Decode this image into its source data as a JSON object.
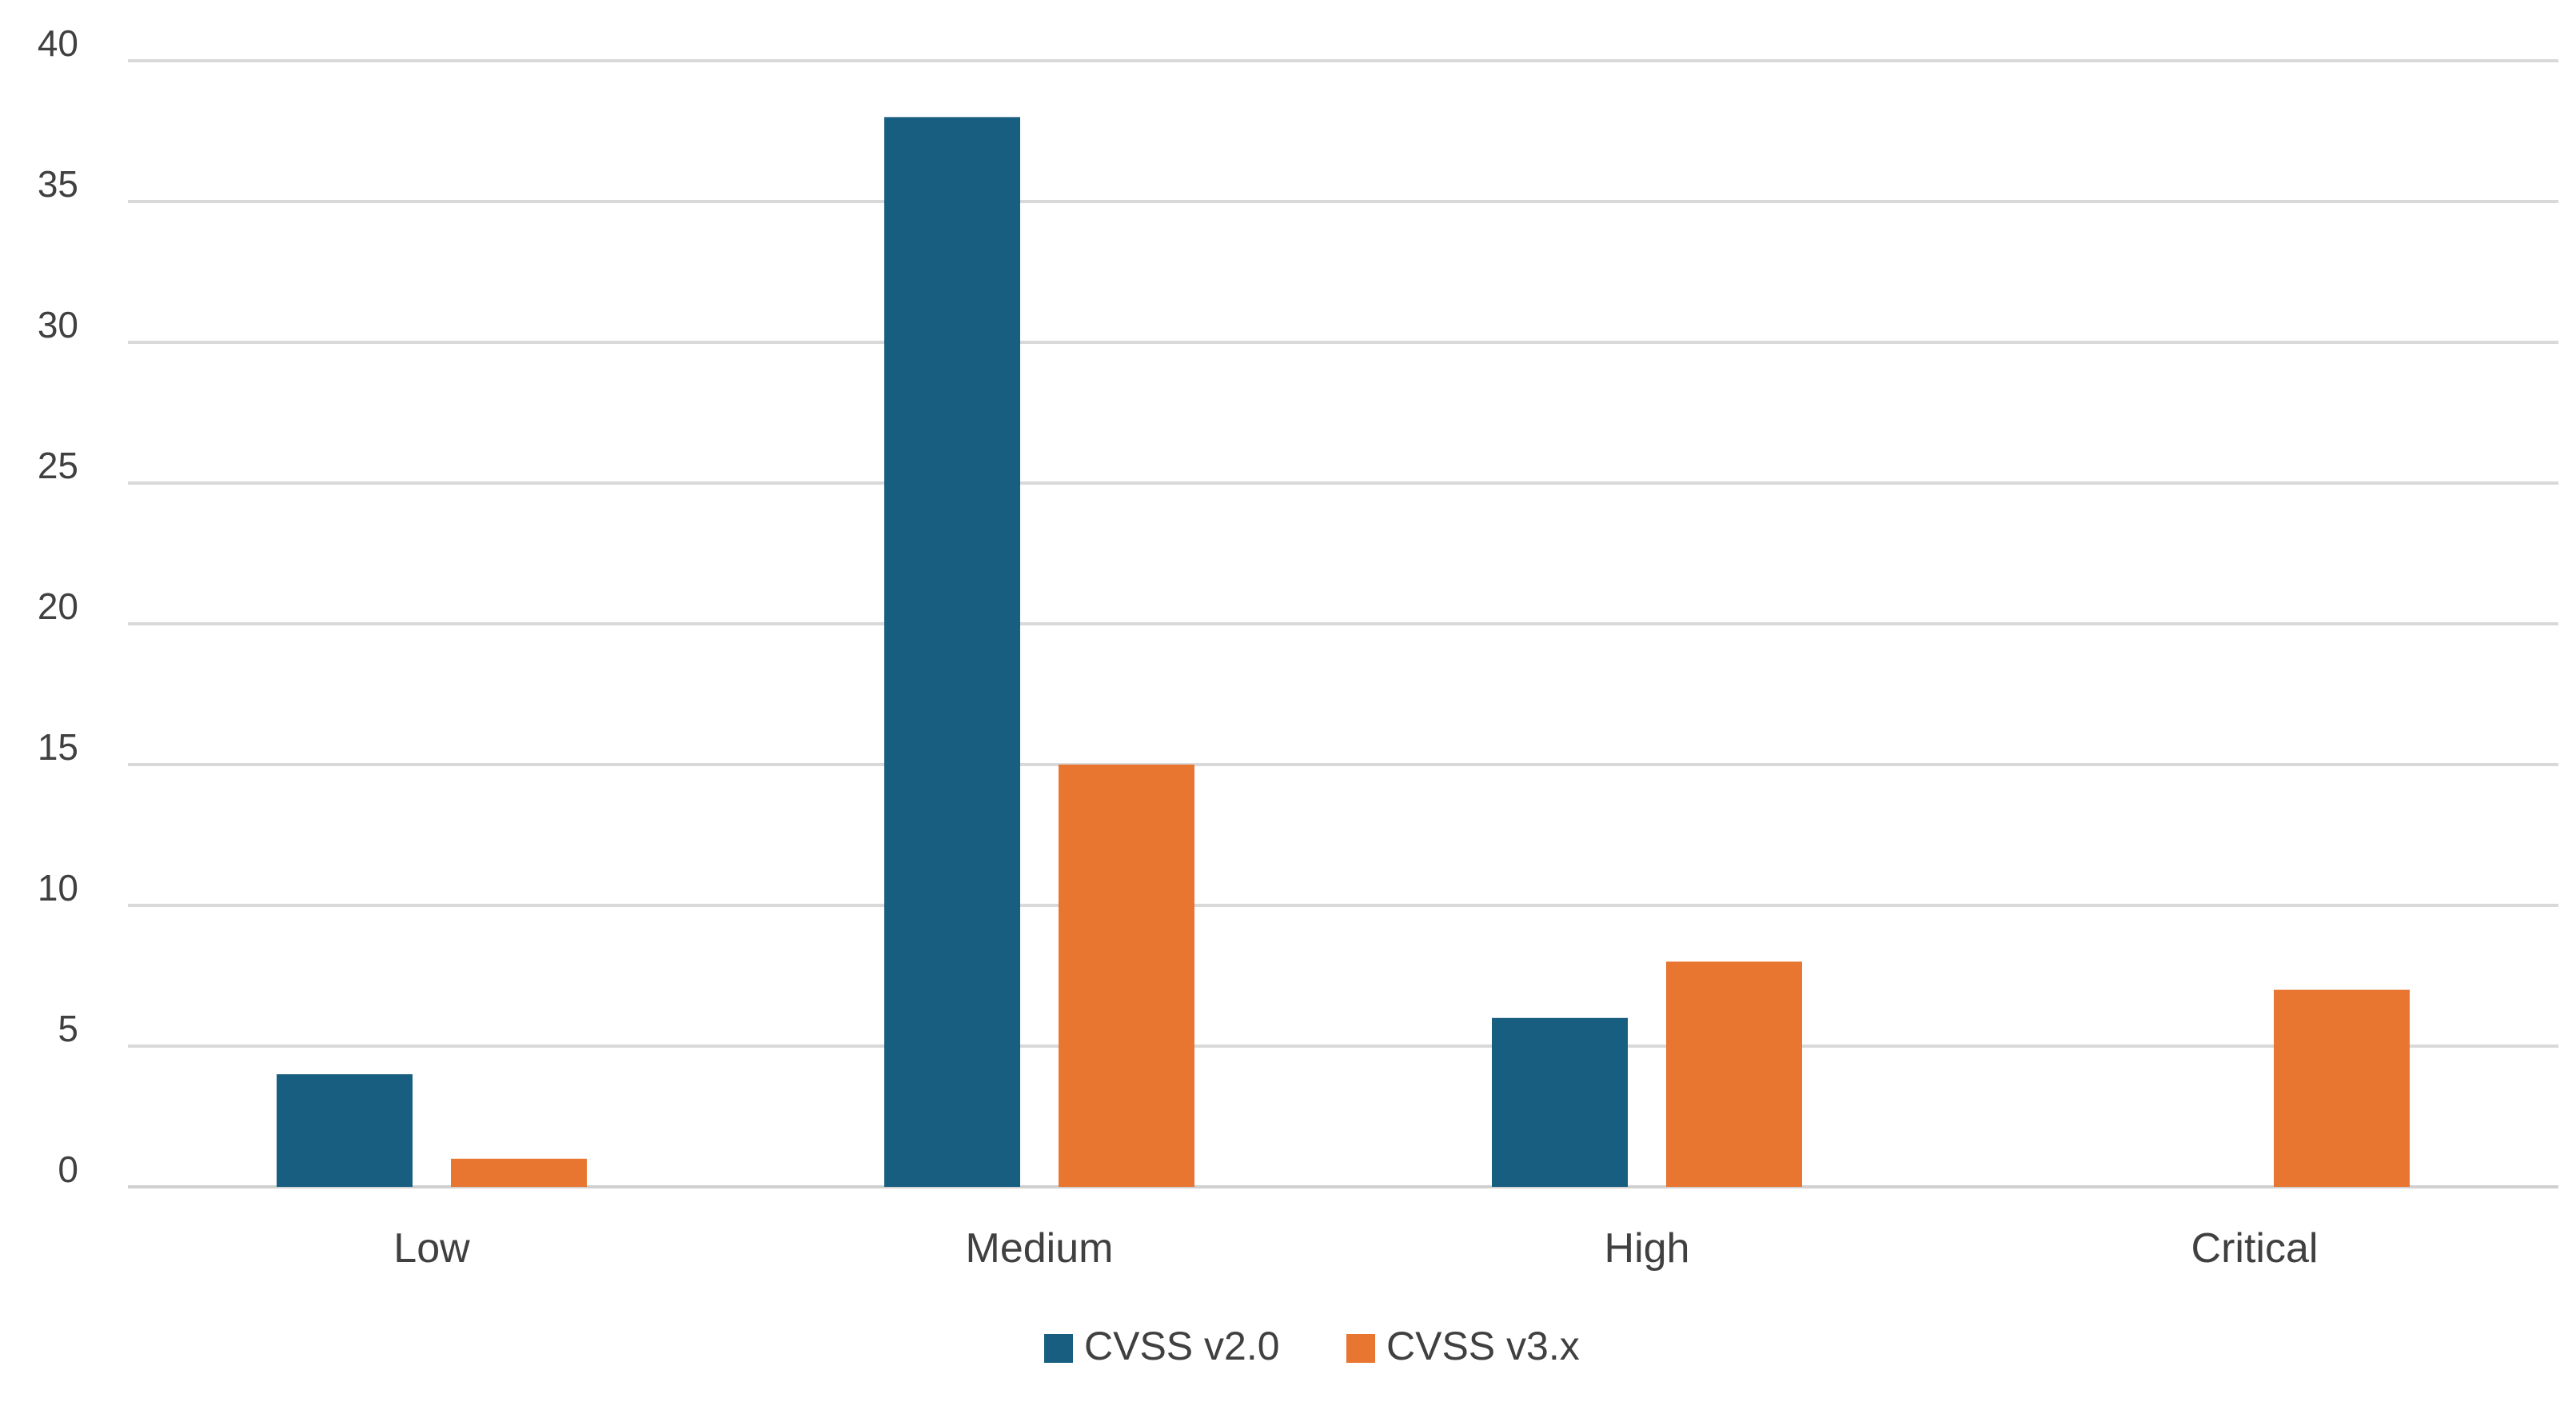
{
  "chart_data": {
    "type": "bar",
    "categories": [
      "Low",
      "Medium",
      "High",
      "Critical"
    ],
    "series": [
      {
        "name": "CVSS v2.0",
        "values": [
          4,
          38,
          6,
          0
        ],
        "color": "#175e80"
      },
      {
        "name": "CVSS v3.x",
        "values": [
          1,
          15,
          8,
          7
        ],
        "color": "#e87530"
      }
    ],
    "title": "",
    "xlabel": "",
    "ylabel": "",
    "ylim": [
      0,
      40
    ],
    "yticks": [
      0,
      5,
      10,
      15,
      20,
      25,
      30,
      35,
      40
    ],
    "grid": true,
    "legend_position": "bottom"
  }
}
